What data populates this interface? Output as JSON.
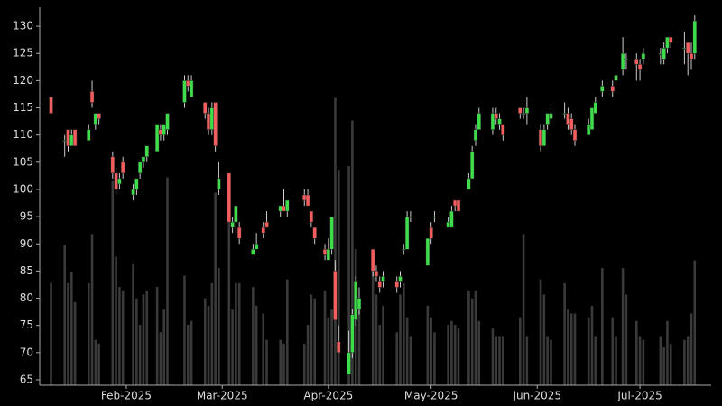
{
  "chart_data": {
    "type": "candlestick",
    "x": [
      10,
      14,
      15,
      16,
      17,
      21,
      22,
      23,
      24,
      28,
      29,
      30,
      31,
      34,
      35,
      36,
      37,
      38,
      41,
      42,
      43,
      44,
      49,
      50,
      51,
      55,
      56,
      57,
      58,
      59,
      62,
      63,
      64,
      65,
      69,
      70,
      72,
      73,
      77,
      78,
      79,
      84,
      85,
      86,
      87,
      90,
      91,
      92,
      93,
      94,
      97,
      98,
      99,
      100,
      104,
      105,
      106,
      107,
      111,
      112,
      113,
      114,
      115,
      120,
      121,
      122,
      126,
      127,
      128,
      129,
      132,
      133,
      134,
      135,
      139,
      140,
      141,
      142,
      147,
      148,
      149,
      153,
      154,
      155,
      156,
      160,
      161,
      162,
      163,
      167,
      168,
      169,
      171,
      174,
      175,
      177,
      178,
      181,
      182,
      183,
      188,
      189,
      190,
      191,
      195,
      196,
      197,
      198
    ],
    "open": [
      117,
      109,
      111,
      108,
      111,
      109,
      118,
      112,
      114,
      106,
      103,
      101,
      105,
      99,
      100,
      103,
      105,
      106,
      107,
      111,
      110,
      111,
      116,
      120,
      117,
      116,
      114,
      111,
      116,
      100,
      103,
      93,
      94,
      93,
      88,
      89,
      93,
      94,
      96,
      97,
      96,
      99,
      99,
      96,
      93,
      89,
      87,
      89,
      85,
      72,
      66,
      70,
      76,
      78,
      89,
      85,
      83,
      83,
      83,
      83,
      89,
      89,
      95,
      86,
      93,
      95,
      93,
      93,
      98,
      98,
      100,
      102,
      109,
      111,
      111,
      114,
      112,
      112,
      115,
      114,
      114,
      111,
      108,
      112,
      113,
      114,
      114,
      113,
      111,
      110,
      111,
      114,
      118,
      119,
      120,
      122,
      124,
      124,
      123,
      124,
      125,
      124,
      126,
      128,
      126,
      127,
      125,
      125
    ],
    "high": [
      117,
      110,
      111,
      111,
      111,
      112,
      120,
      114,
      114,
      107,
      104,
      103,
      106,
      101,
      102,
      105,
      106,
      108,
      112,
      112,
      112,
      114,
      121,
      121,
      121,
      116,
      115,
      116,
      116,
      105,
      103,
      95,
      97,
      94,
      90,
      92,
      94,
      96,
      97,
      100,
      98,
      100,
      100,
      96,
      93,
      90,
      91,
      95,
      87,
      75,
      74,
      78,
      84,
      82,
      89,
      86,
      84,
      85,
      84,
      85,
      90,
      96,
      96,
      91,
      94,
      96,
      95,
      97,
      98,
      98,
      103,
      108,
      112,
      115,
      115,
      115,
      114,
      112,
      115,
      115,
      117,
      112,
      112,
      114,
      115,
      116,
      115,
      114,
      112,
      113,
      115,
      117,
      120,
      120,
      121,
      128,
      125,
      125,
      124,
      126,
      126,
      127,
      128,
      128,
      129,
      127,
      127,
      132
    ],
    "low": [
      114,
      106,
      107,
      108,
      108,
      109,
      115,
      111,
      112,
      102,
      99,
      100,
      102,
      98,
      99,
      102,
      104,
      105,
      107,
      109,
      109,
      110,
      115,
      118,
      117,
      113,
      110,
      110,
      107,
      99,
      94,
      92,
      92,
      90,
      88,
      89,
      91,
      93,
      95,
      96,
      95,
      97,
      97,
      93,
      90,
      87,
      87,
      88,
      76,
      70,
      66,
      69,
      75,
      77,
      84,
      83,
      81,
      82,
      81,
      82,
      88,
      89,
      94,
      86,
      90,
      94,
      93,
      93,
      96,
      96,
      100,
      102,
      108,
      111,
      110,
      112,
      111,
      109,
      113,
      113,
      112,
      107,
      108,
      111,
      112,
      113,
      111,
      110,
      108,
      110,
      111,
      114,
      117,
      117,
      119,
      121,
      122,
      120,
      120,
      123,
      123,
      123,
      125,
      126,
      123,
      121,
      122,
      124
    ],
    "close": [
      114,
      109,
      108,
      110,
      108,
      111,
      116,
      114,
      113,
      103,
      100,
      102,
      103,
      100,
      102,
      105,
      106,
      108,
      112,
      110,
      112,
      114,
      120,
      119,
      120,
      114,
      111,
      115,
      108,
      102,
      94,
      94,
      97,
      91,
      89,
      90,
      92,
      93,
      97,
      96,
      98,
      98,
      97,
      94,
      91,
      88,
      89,
      95,
      76,
      70,
      70,
      77,
      83,
      80,
      85,
      84,
      82,
      84,
      82,
      84,
      89,
      95,
      95,
      91,
      91,
      95,
      94,
      96,
      97,
      96,
      102,
      107,
      111,
      114,
      114,
      113,
      113,
      110,
      114,
      114,
      115,
      108,
      111,
      114,
      114,
      114,
      112,
      111,
      109,
      112,
      115,
      116,
      119,
      118,
      121,
      125,
      124,
      123,
      122,
      125,
      125,
      126,
      128,
      127,
      126,
      125,
      124,
      131
    ],
    "volume": [
      27,
      37,
      27,
      30,
      22,
      27,
      40,
      12,
      11,
      54,
      34,
      26,
      25,
      32,
      23,
      16,
      24,
      25,
      26,
      14,
      20,
      55,
      29,
      16,
      17,
      23,
      21,
      27,
      51,
      31,
      46,
      20,
      27,
      27,
      26,
      21,
      19,
      12,
      12,
      11,
      28,
      11,
      16,
      24,
      23,
      25,
      18,
      20,
      76,
      57,
      58,
      70,
      36,
      20,
      34,
      24,
      16,
      21,
      14,
      24,
      27,
      18,
      13,
      21,
      18,
      14,
      16,
      17,
      16,
      15,
      25,
      23,
      25,
      17,
      15,
      13,
      13,
      13,
      18,
      40,
      13,
      28,
      24,
      13,
      12,
      27,
      20,
      19,
      19,
      18,
      21,
      13,
      31,
      18,
      13,
      31,
      24,
      17,
      13,
      12,
      13,
      10,
      17,
      11,
      12,
      13,
      19,
      33
    ],
    "up_color": "#3fdc4c",
    "down_color": "#f25d5d",
    "volume_color": "#3a3a3a",
    "xlim": [
      6.7,
      202.8
    ],
    "xticks": [
      {
        "value": 32,
        "label": "Feb-2025"
      },
      {
        "value": 60,
        "label": "Mar-2025"
      },
      {
        "value": 91,
        "label": "Apr-2025"
      },
      {
        "value": 121,
        "label": "May-2025"
      },
      {
        "value": 152,
        "label": "Jun-2025"
      },
      {
        "value": 182,
        "label": "Jul-2025"
      }
    ],
    "ylim": [
      64,
      133.5
    ],
    "yticks": [
      65,
      70,
      75,
      80,
      85,
      90,
      95,
      100,
      105,
      110,
      115,
      120,
      125,
      130
    ],
    "y2lim": [
      0,
      100
    ]
  }
}
